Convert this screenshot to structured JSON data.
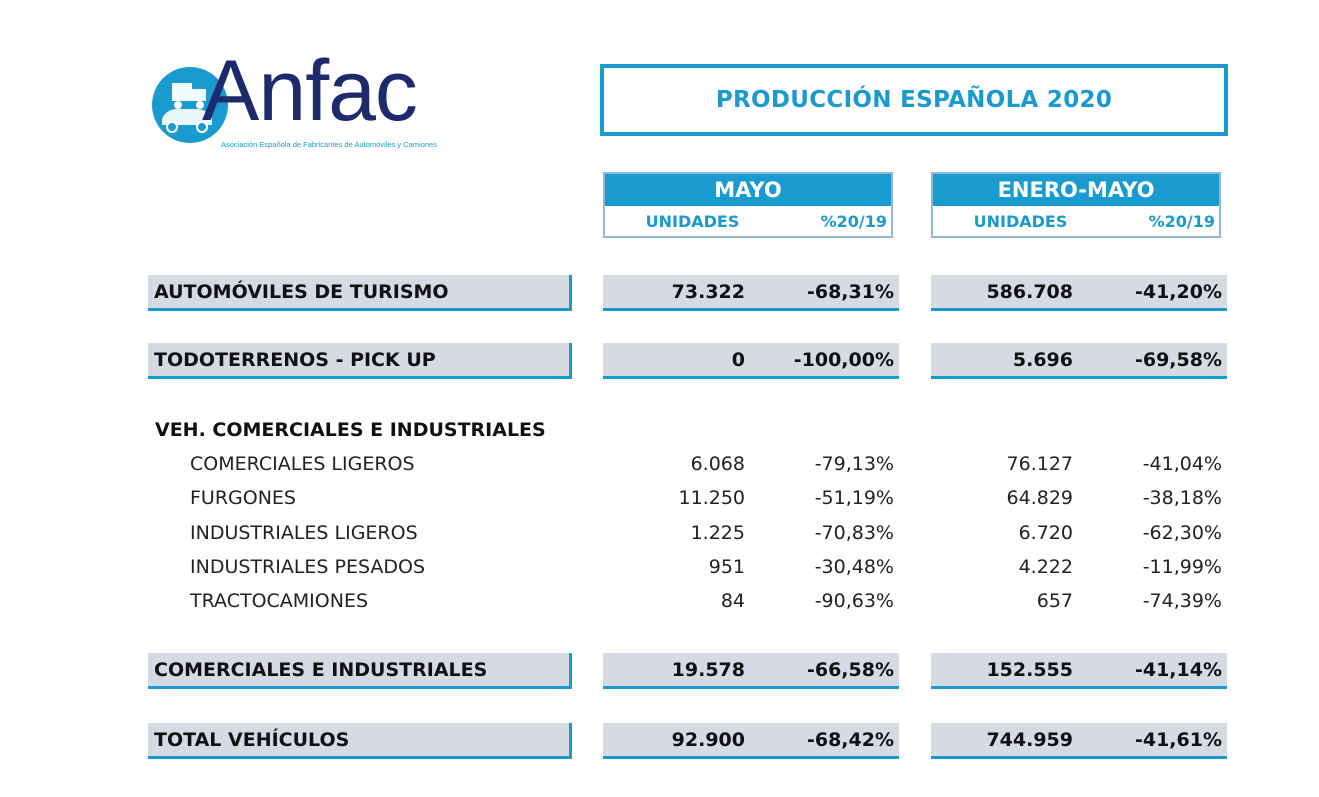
{
  "logo": {
    "word": "Anfac",
    "subtitle": "Asociación Española de Fabricantes de Automóviles y Camiones"
  },
  "title": "PRODUCCIÓN ESPAÑOLA 2020",
  "periods": [
    {
      "name": "MAYO",
      "col_units": "UNIDADES",
      "col_pct": "%20/19"
    },
    {
      "name": "ENERO-MAYO",
      "col_units": "UNIDADES",
      "col_pct": "%20/19"
    }
  ],
  "rows": {
    "turismo": {
      "label": "AUTOMÓVILES DE TURISMO",
      "mayo_u": "73.322",
      "mayo_p": "-68,31%",
      "ene_u": "586.708",
      "ene_p": "-41,20%"
    },
    "todoterrenos": {
      "label": "TODOTERRENOS - PICK UP",
      "mayo_u": "0",
      "mayo_p": "-100,00%",
      "ene_u": "5.696",
      "ene_p": "-69,58%"
    },
    "comerciales_total": {
      "label": "COMERCIALES E INDUSTRIALES",
      "mayo_u": "19.578",
      "mayo_p": "-66,58%",
      "ene_u": "152.555",
      "ene_p": "-41,14%"
    },
    "total": {
      "label": "TOTAL VEHÍCULOS",
      "mayo_u": "92.900",
      "mayo_p": "-68,42%",
      "ene_u": "744.959",
      "ene_p": "-41,61%"
    }
  },
  "section": {
    "title": "VEH. COMERCIALES E INDUSTRIALES",
    "items": [
      {
        "label": "COMERCIALES LIGEROS",
        "mayo_u": "6.068",
        "mayo_p": "-79,13%",
        "ene_u": "76.127",
        "ene_p": "-41,04%"
      },
      {
        "label": "FURGONES",
        "mayo_u": "11.250",
        "mayo_p": "-51,19%",
        "ene_u": "64.829",
        "ene_p": "-38,18%"
      },
      {
        "label": "INDUSTRIALES LIGEROS",
        "mayo_u": "1.225",
        "mayo_p": "-70,83%",
        "ene_u": "6.720",
        "ene_p": "-62,30%"
      },
      {
        "label": "INDUSTRIALES PESADOS",
        "mayo_u": "951",
        "mayo_p": "-30,48%",
        "ene_u": "4.222",
        "ene_p": "-11,99%"
      },
      {
        "label": "TRACTOCAMIONES",
        "mayo_u": "84",
        "mayo_p": "-90,63%",
        "ene_u": "657",
        "ene_p": "-74,39%"
      }
    ]
  },
  "colors": {
    "accent": "#1a9bd0",
    "band": "#d6dbe3",
    "logo_text": "#1d2a6b"
  },
  "icons": {
    "logo": "car-truck-icon"
  }
}
